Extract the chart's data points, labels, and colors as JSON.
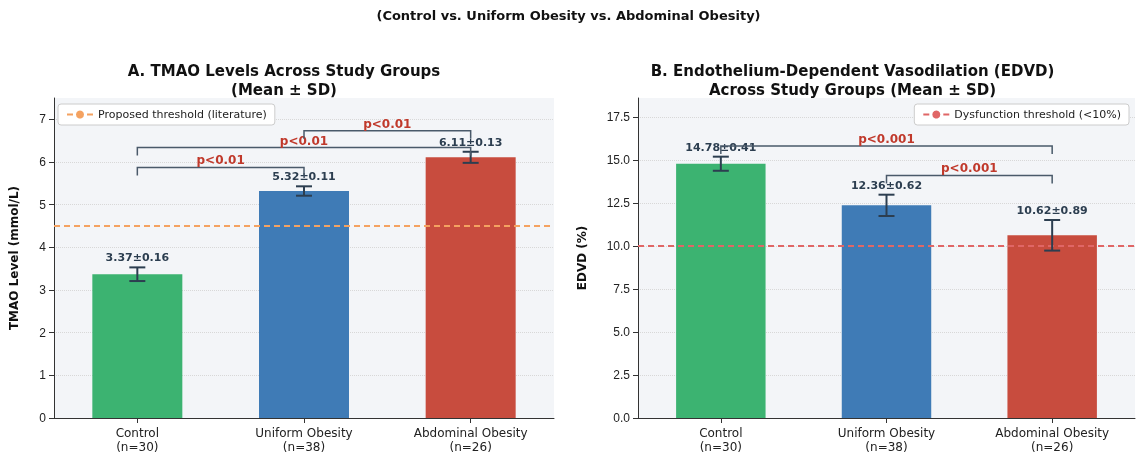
{
  "chart_data": [
    {
      "type": "bar",
      "title": "A. TMAO Levels Across Study Groups\n(Mean ± SD)",
      "ylabel": "TMAO Level (mmol/L)",
      "categories": [
        "Control\n(n=30)",
        "Uniform Obesity\n(n=38)",
        "Abdominal Obesity\n(n=26)"
      ],
      "values": [
        3.37,
        5.32,
        6.11
      ],
      "colors": [
        "#3cb371",
        "#3f7bb6",
        "#c84c3e"
      ],
      "errors": [
        0.16,
        0.11,
        0.13
      ],
      "value_labels": [
        "3.37±0.16",
        "5.32±0.11",
        "6.11±0.13"
      ],
      "ylim": [
        0,
        7.5
      ],
      "yticks": [
        0,
        1,
        2,
        3,
        4,
        5,
        6,
        7
      ],
      "grid": "y",
      "legend": "top left",
      "ref_lines": [
        {
          "axis": "y",
          "value": 4.5,
          "label": "Proposed threshold (literature)",
          "color": "#f4a261",
          "line_style": "dashed"
        }
      ],
      "annotations": [
        "(Control vs. Uniform Obesity vs. Abdominal Obesity)",
        "p<0.01",
        "p<0.01",
        "p<0.01"
      ]
    },
    {
      "type": "bar",
      "title": "B. Endothelium-Dependent Vasodilation (EDVD)\nAcross Study Groups (Mean ± SD)",
      "ylabel": "EDVD (%)",
      "categories": [
        "Control\n(n=30)",
        "Uniform Obesity\n(n=38)",
        "Abdominal Obesity\n(n=26)"
      ],
      "values": [
        14.78,
        12.36,
        10.62
      ],
      "colors": [
        "#3cb371",
        "#3f7bb6",
        "#c84c3e"
      ],
      "errors": [
        0.41,
        0.62,
        0.89
      ],
      "value_labels": [
        "14.78±0.41",
        "12.36±0.62",
        "10.62±0.89"
      ],
      "ylim": [
        0,
        18.6
      ],
      "yticks": [
        {
          "value": 0,
          "label": "0.0"
        },
        {
          "value": 2.5,
          "label": "2.5"
        },
        {
          "value": 5,
          "label": "5.0"
        },
        {
          "value": 7.5,
          "label": "7.5"
        },
        {
          "value": 10,
          "label": "10.0"
        },
        {
          "value": 12.5,
          "label": "12.5"
        },
        {
          "value": 15,
          "label": "15.0"
        },
        {
          "value": 17.5,
          "label": "17.5"
        }
      ],
      "grid": "y",
      "legend": "top right",
      "ref_lines": [
        {
          "axis": "y",
          "value": 10,
          "label": "Dysfunction threshold (<10%)",
          "color": "#e06666",
          "line_style": "dashed"
        }
      ],
      "annotations": [
        "p<0.001",
        "p<0.001"
      ]
    }
  ]
}
